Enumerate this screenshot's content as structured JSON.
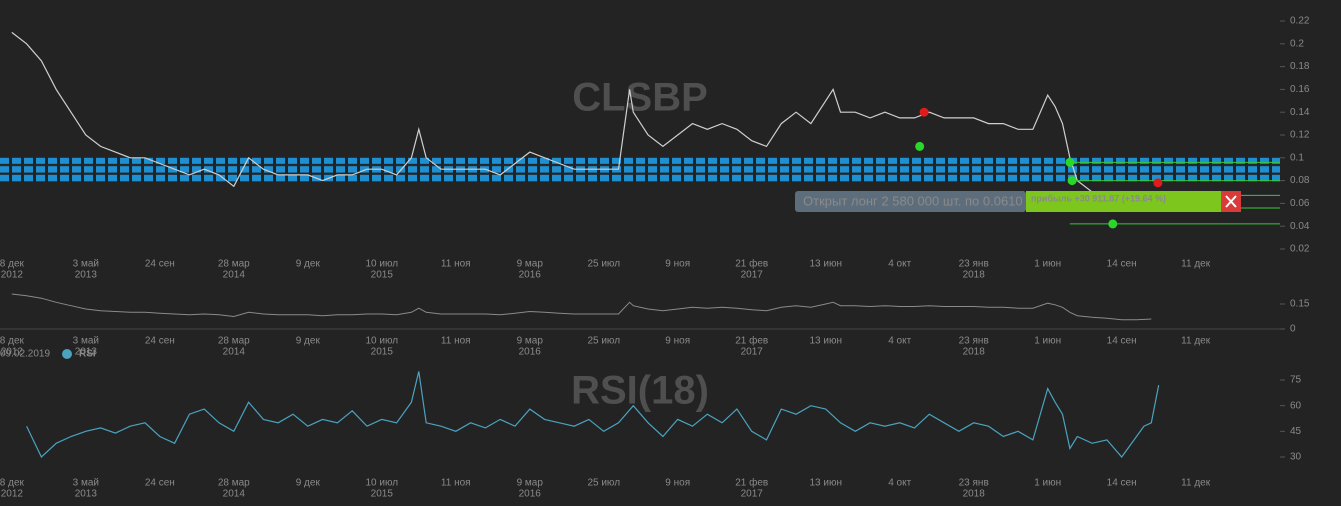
{
  "chart_data": [
    {
      "type": "line",
      "title": "CLSBP",
      "x": [
        0,
        20,
        40,
        60,
        80,
        100,
        120,
        140,
        160,
        180,
        200,
        220,
        240,
        260,
        280,
        300,
        320,
        340,
        360,
        380,
        400,
        420,
        440,
        460,
        480,
        500,
        520,
        540,
        550,
        560,
        580,
        600,
        620,
        640,
        660,
        680,
        700,
        720,
        740,
        760,
        780,
        800,
        820,
        835,
        840,
        860,
        880,
        900,
        920,
        940,
        960,
        980,
        1000,
        1020,
        1040,
        1060,
        1080,
        1100,
        1110,
        1120,
        1140,
        1160,
        1180,
        1200,
        1220,
        1240,
        1260,
        1280,
        1300,
        1320,
        1340,
        1360,
        1380,
        1400,
        1410,
        1420,
        1430,
        1440,
        1460,
        1480,
        1500,
        1520,
        1540
      ],
      "series": [
        {
          "color": "#cfcfcf",
          "values": [
            0.21,
            0.2,
            0.185,
            0.16,
            0.14,
            0.12,
            0.11,
            0.105,
            0.1,
            0.1,
            0.095,
            0.09,
            0.085,
            0.09,
            0.085,
            0.075,
            0.1,
            0.09,
            0.085,
            0.085,
            0.085,
            0.08,
            0.085,
            0.085,
            0.09,
            0.09,
            0.085,
            0.1,
            0.125,
            0.1,
            0.09,
            0.09,
            0.09,
            0.09,
            0.085,
            0.095,
            0.105,
            0.1,
            0.095,
            0.09,
            0.09,
            0.09,
            0.09,
            0.16,
            0.14,
            0.12,
            0.11,
            0.12,
            0.13,
            0.125,
            0.13,
            0.125,
            0.115,
            0.11,
            0.13,
            0.14,
            0.13,
            0.15,
            0.16,
            0.14,
            0.14,
            0.135,
            0.14,
            0.135,
            0.135,
            0.14,
            0.135,
            0.135,
            0.135,
            0.13,
            0.13,
            0.125,
            0.125,
            0.155,
            0.145,
            0.13,
            0.1,
            0.08,
            0.07,
            0.065,
            0.055,
            0.055,
            0.06
          ]
        }
      ],
      "xlim": [
        -16,
        1714
      ],
      "ylim": [
        0.02,
        0.22
      ],
      "yticks": [
        0.02,
        0.04,
        0.06,
        0.08,
        0.1,
        0.12,
        0.14,
        0.16,
        0.18,
        0.2,
        0.22
      ],
      "xticks": [
        {
          "value": 0,
          "label": "8 дек"
        },
        {
          "value": 100,
          "label": "3 май"
        },
        {
          "value": 200,
          "label": "24 сен"
        },
        {
          "value": 300,
          "label": "28 мар"
        },
        {
          "value": 400,
          "label": "9 дек"
        },
        {
          "value": 500,
          "label": "10 июл"
        },
        {
          "value": 600,
          "label": "11 ноя"
        },
        {
          "value": 700,
          "label": "9 мар"
        },
        {
          "value": 800,
          "label": "25 июл"
        },
        {
          "value": 900,
          "label": "9 ноя"
        },
        {
          "value": 1000,
          "label": "21 фев"
        },
        {
          "value": 1100,
          "label": "13 июн"
        },
        {
          "value": 1200,
          "label": "4 окт"
        },
        {
          "value": 1300,
          "label": "23 янв"
        },
        {
          "value": 1400,
          "label": "1 июн"
        },
        {
          "value": 1500,
          "label": "14 сен"
        },
        {
          "value": 1600,
          "label": "11 дек"
        }
      ],
      "x_year_labels": [
        {
          "value": 0,
          "label": "2012"
        },
        {
          "value": 100,
          "label": "2013"
        },
        {
          "value": 300,
          "label": "2014"
        },
        {
          "value": 500,
          "label": "2015"
        },
        {
          "value": 700,
          "label": "2016"
        },
        {
          "value": 1000,
          "label": "2017"
        },
        {
          "value": 1300,
          "label": "2018"
        }
      ],
      "zone": [
        0.078,
        0.1
      ],
      "zone_color": "#1e8fd0",
      "signals": [
        {
          "x": 1227,
          "y": 0.11,
          "color": "#2bd62b"
        },
        {
          "x": 1233,
          "y": 0.14,
          "color": "#e01b1b"
        },
        {
          "x": 1430,
          "y": 0.096,
          "color": "#2bd62b"
        },
        {
          "x": 1433,
          "y": 0.08,
          "color": "#2bd62b"
        },
        {
          "x": 1488,
          "y": 0.042,
          "color": "#2bd62b"
        },
        {
          "x": 1549,
          "y": 0.078,
          "color": "#e01b1b"
        }
      ],
      "levels": [
        0.096,
        0.08,
        0.067,
        0.056,
        0.042
      ],
      "levels_from": 1430,
      "level_color": "#38c738",
      "trade_label": "Открыт лонг 2 580 000 шт. по 0.0610",
      "profit_label": "прибыль +30 911.87 (+19.64 %)"
    },
    {
      "type": "navigator",
      "ylim": [
        0,
        0.24
      ],
      "yticks": [
        0,
        0.15
      ]
    },
    {
      "type": "line",
      "title": "RSI(18)",
      "legend_date": "09.02.2019",
      "x": [
        20,
        40,
        60,
        80,
        100,
        120,
        140,
        160,
        180,
        200,
        220,
        240,
        260,
        280,
        300,
        320,
        340,
        360,
        380,
        400,
        420,
        440,
        460,
        480,
        500,
        520,
        540,
        550,
        560,
        580,
        600,
        620,
        640,
        660,
        680,
        700,
        720,
        740,
        760,
        780,
        800,
        820,
        840,
        860,
        880,
        900,
        920,
        940,
        960,
        980,
        1000,
        1020,
        1040,
        1060,
        1080,
        1100,
        1120,
        1140,
        1160,
        1180,
        1200,
        1220,
        1240,
        1260,
        1280,
        1300,
        1320,
        1340,
        1360,
        1380,
        1400,
        1410,
        1420,
        1430,
        1440,
        1460,
        1480,
        1500,
        1520,
        1530,
        1540,
        1550
      ],
      "series": [
        {
          "name": "RSI",
          "color": "#4aa3bf",
          "values": [
            48,
            30,
            38,
            42,
            45,
            47,
            44,
            48,
            50,
            42,
            38,
            55,
            58,
            50,
            45,
            62,
            52,
            50,
            55,
            48,
            52,
            50,
            57,
            48,
            52,
            50,
            62,
            80,
            50,
            48,
            45,
            50,
            47,
            52,
            48,
            58,
            52,
            50,
            48,
            52,
            45,
            50,
            60,
            50,
            42,
            52,
            48,
            55,
            50,
            58,
            45,
            40,
            58,
            55,
            60,
            58,
            50,
            45,
            50,
            48,
            50,
            47,
            55,
            50,
            45,
            50,
            48,
            42,
            45,
            40,
            70,
            62,
            55,
            35,
            42,
            38,
            40,
            30,
            42,
            48,
            50,
            72
          ]
        }
      ],
      "ylim": [
        22,
        84
      ],
      "yticks": [
        30,
        45,
        60,
        75
      ]
    }
  ]
}
